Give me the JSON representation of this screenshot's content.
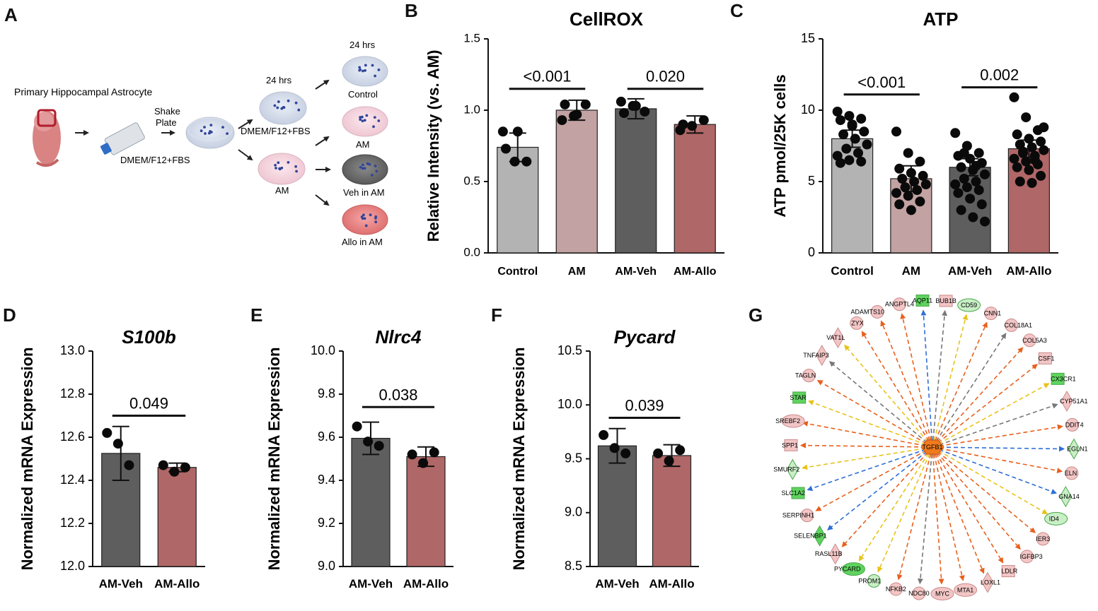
{
  "figure": {
    "panel_letters": [
      "A",
      "B",
      "C",
      "D",
      "E",
      "F",
      "G"
    ]
  },
  "schematic": {
    "title": "Primary Hippocampal Astrocyte",
    "shake_plate": [
      "Shake",
      "Plate"
    ],
    "medium_label": "DMEM/F12+FBS",
    "time_mid": "24 hrs",
    "time_right": "24 hrs",
    "mid_top_label": "DMEM/F12+FBS",
    "mid_bottom_label": "AM",
    "right_labels": [
      "Control",
      "AM",
      "Veh in AM",
      "Allo in AM"
    ],
    "colors": {
      "blue_dish": "#c9d3e4",
      "pink_dish": "#f3d2dc",
      "gray_dish": "#6c6c6c",
      "red_dish": "#e27d7d",
      "dot": "#31469a",
      "embryo": "#d97878"
    }
  },
  "chart_data": [
    {
      "id": "B",
      "type": "bar",
      "title": "CellROX",
      "ylabel": "Relative Intensity (vs. AM)",
      "xlabel": "",
      "ylim": [
        0,
        1.5
      ],
      "yticks": [
        "0.0",
        "0.5",
        "1.0",
        "1.5"
      ],
      "categories": [
        "Control",
        "AM",
        "AM-Veh",
        "AM-Allo"
      ],
      "values": [
        0.74,
        1.0,
        1.01,
        0.9
      ],
      "errors": [
        0.1,
        0.07,
        0.07,
        0.06
      ],
      "colors": [
        "#b3b3b3",
        "#c2a2a2",
        "#5e5e5e",
        "#b06767"
      ],
      "points": [
        [
          0.85,
          0.64,
          0.64,
          0.73,
          0.85
        ],
        [
          0.93,
          0.96,
          1.04,
          1.04,
          0.97
        ],
        [
          1.06,
          1.03,
          0.99,
          0.98,
          1.03
        ],
        [
          0.86,
          0.89,
          0.93,
          0.9
        ]
      ],
      "significance": [
        {
          "label": "<0.001",
          "from": 0,
          "to": 1
        },
        {
          "label": "0.020",
          "from": 2,
          "to": 3
        }
      ],
      "sig_y": [
        1.15,
        1.15
      ]
    },
    {
      "id": "C",
      "type": "bar",
      "title": "ATP",
      "ylabel": "ATP pmol/25K cells",
      "xlabel": "",
      "ylim": [
        0,
        15
      ],
      "yticks": [
        "0",
        "5",
        "10",
        "15"
      ],
      "categories": [
        "Control",
        "AM",
        "AM-Veh",
        "AM-Allo"
      ],
      "values": [
        8.0,
        5.2,
        6.0,
        7.3
      ],
      "errors": [
        0.6,
        0.9,
        0.6,
        0.6
      ],
      "colors": [
        "#b3b3b3",
        "#c2a2a2",
        "#5e5e5e",
        "#b06767"
      ],
      "points": [
        [
          9.9,
          9.6,
          9.4,
          9.3,
          8.9,
          8.5,
          8.3,
          8.0,
          7.6,
          7.3,
          7.0,
          6.8,
          6.5,
          6.4,
          6.3,
          9.0
        ],
        [
          8.5,
          7.0,
          6.4,
          5.9,
          5.6,
          5.4,
          5.2,
          5.0,
          4.8,
          4.6,
          4.4,
          4.2,
          4.0,
          3.6,
          3.4,
          3.0
        ],
        [
          8.4,
          7.5,
          7.0,
          6.8,
          6.6,
          6.3,
          6.0,
          5.8,
          5.5,
          5.2,
          5.0,
          4.8,
          4.6,
          4.4,
          4.2,
          3.8,
          3.4,
          3.0,
          2.5,
          2.2,
          7.0,
          6.1
        ],
        [
          10.9,
          9.5,
          8.6,
          8.3,
          8.0,
          7.8,
          7.6,
          7.4,
          7.2,
          7.0,
          6.8,
          6.6,
          6.4,
          6.2,
          6.0,
          5.8,
          5.4,
          5.0,
          4.9,
          8.8,
          7.1,
          6.5
        ]
      ],
      "significance": [
        {
          "label": "<0.001",
          "from": 0,
          "to": 1
        },
        {
          "label": "0.002",
          "from": 2,
          "to": 3
        }
      ],
      "sig_y": [
        11.1,
        11.6
      ]
    },
    {
      "id": "D",
      "type": "bar",
      "title": "S100b",
      "ylabel": "Normalized mRNA Expression",
      "xlabel": "",
      "ylim": [
        12.0,
        13.0
      ],
      "yticks": [
        "12.0",
        "12.2",
        "12.4",
        "12.6",
        "12.8",
        "13.0"
      ],
      "categories": [
        "AM-Veh",
        "AM-Allo"
      ],
      "values": [
        12.525,
        12.46
      ],
      "errors": [
        0.125,
        0.02
      ],
      "colors": [
        "#5e5e5e",
        "#b06767"
      ],
      "points": [
        [
          12.62,
          12.57,
          12.47
        ],
        [
          12.47,
          12.44,
          12.46
        ]
      ],
      "significance": [
        {
          "label": "0.049",
          "from": 0,
          "to": 1
        }
      ],
      "sig_y": [
        12.7
      ]
    },
    {
      "id": "E",
      "type": "bar",
      "title": "Nlrc4",
      "ylabel": "Normalized mRNA Expression",
      "xlabel": "",
      "ylim": [
        9.0,
        10.0
      ],
      "yticks": [
        "9.0",
        "9.2",
        "9.4",
        "9.6",
        "9.8",
        "10.0"
      ],
      "categories": [
        "AM-Veh",
        "AM-Allo"
      ],
      "values": [
        9.595,
        9.51
      ],
      "errors": [
        0.075,
        0.045
      ],
      "colors": [
        "#5e5e5e",
        "#b06767"
      ],
      "points": [
        [
          9.65,
          9.58,
          9.56
        ],
        [
          9.52,
          9.48,
          9.53
        ]
      ],
      "significance": [
        {
          "label": "0.038",
          "from": 0,
          "to": 1
        }
      ],
      "sig_y": [
        9.74
      ]
    },
    {
      "id": "F",
      "type": "bar",
      "title": "Pycard",
      "ylabel": "Normalized mRNA Expression",
      "xlabel": "",
      "ylim": [
        8.5,
        10.5
      ],
      "yticks": [
        "8.5",
        "9.0",
        "9.5",
        "10.0",
        "10.5"
      ],
      "categories": [
        "AM-Veh",
        "AM-Allo"
      ],
      "values": [
        9.62,
        9.53
      ],
      "errors": [
        0.16,
        0.1
      ],
      "colors": [
        "#5e5e5e",
        "#b06767"
      ],
      "points": [
        [
          9.72,
          9.6,
          9.55
        ],
        [
          9.55,
          9.48,
          9.58
        ]
      ],
      "significance": [
        {
          "label": "0.039",
          "from": 0,
          "to": 1
        }
      ],
      "sig_y": [
        9.88
      ]
    }
  ],
  "network": {
    "hub": "TGFB1",
    "nodes": [
      {
        "label": "AQP11",
        "color": "green",
        "shape": "rect",
        "edge": "blue"
      },
      {
        "label": "BUB1B",
        "color": "pink",
        "shape": "rect",
        "edge": "gray"
      },
      {
        "label": "CD59",
        "color": "greenlight",
        "shape": "ellipse",
        "edge": "yellow"
      },
      {
        "label": "CNN1",
        "color": "pink",
        "shape": "circle",
        "edge": "orange"
      },
      {
        "label": "COL18A1",
        "color": "pink",
        "shape": "circle",
        "edge": "gray"
      },
      {
        "label": "COL5A3",
        "color": "pink",
        "shape": "circle",
        "edge": "orange"
      },
      {
        "label": "CSF1",
        "color": "pink",
        "shape": "rect",
        "edge": "orange"
      },
      {
        "label": "CX3CR1",
        "color": "green",
        "shape": "rect",
        "edge": "yellow"
      },
      {
        "label": "CYP51A1",
        "color": "pink",
        "shape": "diamond",
        "edge": "gray"
      },
      {
        "label": "DDIT4",
        "color": "pink",
        "shape": "circle",
        "edge": "orange"
      },
      {
        "label": "EGLN1",
        "color": "greenlight",
        "shape": "diamond",
        "edge": "blue"
      },
      {
        "label": "ELN",
        "color": "pink",
        "shape": "circle",
        "edge": "orange"
      },
      {
        "label": "GNA14",
        "color": "greenlight",
        "shape": "diamond",
        "edge": "blue"
      },
      {
        "label": "ID4",
        "color": "greenlight",
        "shape": "ellipse",
        "edge": "yellow"
      },
      {
        "label": "IER3",
        "color": "pink",
        "shape": "circle",
        "edge": "orange"
      },
      {
        "label": "IGFBP3",
        "color": "pink",
        "shape": "circle",
        "edge": "orange"
      },
      {
        "label": "LDLR",
        "color": "pink",
        "shape": "rect",
        "edge": "orange"
      },
      {
        "label": "LOXL1",
        "color": "pink",
        "shape": "diamond",
        "edge": "orange"
      },
      {
        "label": "MTA1",
        "color": "pink",
        "shape": "ellipse",
        "edge": "orange"
      },
      {
        "label": "MYC",
        "color": "pink",
        "shape": "ellipse",
        "edge": "orange"
      },
      {
        "label": "NDC80",
        "color": "pink",
        "shape": "circle",
        "edge": "gray"
      },
      {
        "label": "NFKB2",
        "color": "pink",
        "shape": "circle",
        "edge": "orange"
      },
      {
        "label": "PROM1",
        "color": "greenlight",
        "shape": "circle",
        "edge": "yellow"
      },
      {
        "label": "PYCARD",
        "color": "green",
        "shape": "ellipse",
        "edge": "yellow"
      },
      {
        "label": "RASL11B",
        "color": "pink",
        "shape": "diamond",
        "edge": "orange"
      },
      {
        "label": "SELENBP1",
        "color": "green",
        "shape": "diamond",
        "edge": "blue"
      },
      {
        "label": "SERPINH1",
        "color": "pink",
        "shape": "circle",
        "edge": "orange"
      },
      {
        "label": "SLC1A2",
        "color": "green",
        "shape": "rect",
        "edge": "blue"
      },
      {
        "label": "SMURF2",
        "color": "greenlight",
        "shape": "diamond",
        "edge": "yellow"
      },
      {
        "label": "SPP1",
        "color": "pink",
        "shape": "rect",
        "edge": "orange"
      },
      {
        "label": "SREBF2",
        "color": "pink",
        "shape": "ellipse",
        "edge": "orange"
      },
      {
        "label": "STAR",
        "color": "green",
        "shape": "rect",
        "edge": "yellow"
      },
      {
        "label": "TAGLN",
        "color": "pink",
        "shape": "circle",
        "edge": "orange"
      },
      {
        "label": "TNFAIP3",
        "color": "pink",
        "shape": "diamond",
        "edge": "gray"
      },
      {
        "label": "VAT1L",
        "color": "pink",
        "shape": "diamond",
        "edge": "yellow"
      },
      {
        "label": "ZYX",
        "color": "pink",
        "shape": "circle",
        "edge": "orange"
      },
      {
        "label": "ADAMTS10",
        "color": "pink",
        "shape": "circle",
        "edge": "orange"
      },
      {
        "label": "ANGPTL4",
        "color": "pink",
        "shape": "circle",
        "edge": "orange"
      }
    ],
    "colors": {
      "pink": "#f3c6c6",
      "green": "#5fd35f",
      "greenlight": "#c9efc6",
      "hub": "#f07a1e",
      "orange": "#e8601c",
      "blue": "#2f6fd6",
      "yellow": "#e9c21a",
      "gray": "#777777"
    }
  }
}
